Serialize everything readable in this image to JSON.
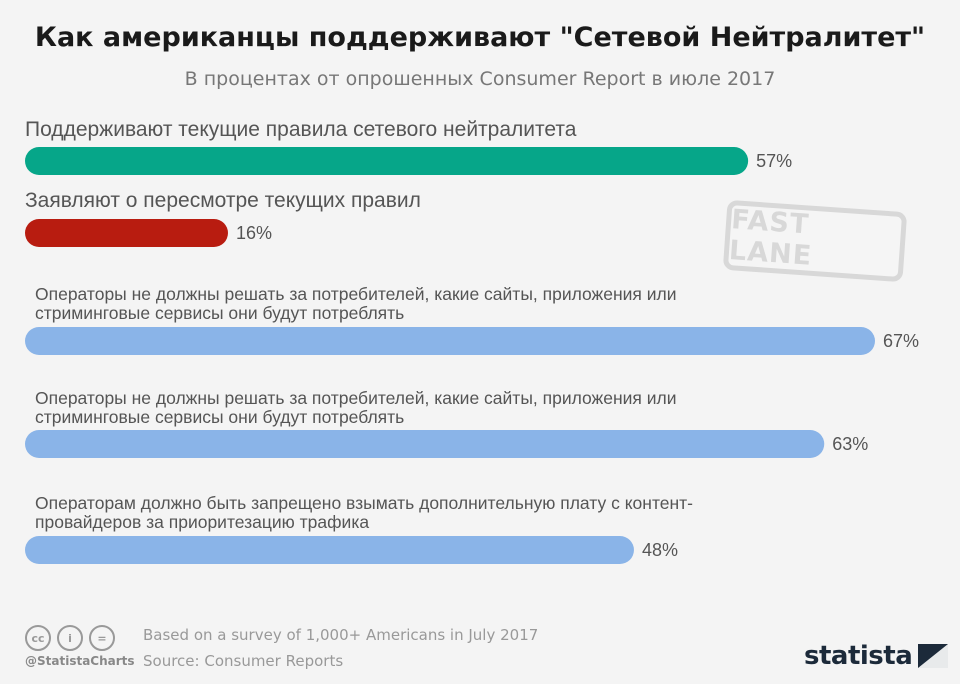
{
  "header": {
    "title": "Как американцы поддерживают \"Сетевой Нейтралитет\"",
    "subtitle": "В процентах от опрошенных Consumer Report в июле 2017"
  },
  "stamp": {
    "text": "FAST LANE"
  },
  "chart_data": {
    "type": "bar",
    "orientation": "horizontal",
    "title": "Как американцы поддерживают \"Сетевой Нейтралитет\"",
    "subtitle": "В процентах от опрошенных Consumer Report в июле 2017",
    "xlim": [
      0,
      67
    ],
    "grid": false,
    "legend": "none",
    "value_suffix": "%",
    "bars": [
      {
        "lines": [
          "Поддерживают текущие правила сетевого нейтралитета"
        ],
        "value": 57,
        "color": "#06a689",
        "style": "large"
      },
      {
        "lines": [
          "Заявляют о пересмотре текущих правил"
        ],
        "value": 16,
        "color": "#b81c10",
        "style": "large"
      },
      {
        "lines": [
          "Операторы не должны решать за потребителей, какие сайты, приложения или",
          "стриминговые сервисы они будут потреблять"
        ],
        "value": 67,
        "color": "#8ab4e8",
        "style": "small"
      },
      {
        "lines": [
          "Операторы не должны решать за потребителей, какие сайты, приложения или",
          "стриминговые сервисы они будут потреблять"
        ],
        "value": 63,
        "color": "#8ab4e8",
        "style": "small"
      },
      {
        "lines": [
          "Операторам должно быть запрещено взымать дополнительную плату с контент-",
          "провайдеров за приоритезацию трафика"
        ],
        "value": 48,
        "color": "#8ab4e8",
        "style": "small"
      }
    ]
  },
  "footer": {
    "icons": [
      "cc-icon",
      "by-icon",
      "nd-icon"
    ],
    "icon_text": [
      "cc",
      "i",
      "="
    ],
    "handle": "@StatistaCharts",
    "note": "Based on a survey of 1,000+ Americans in July 2017",
    "source": "Source: Consumer Reports",
    "brand": "statista"
  }
}
